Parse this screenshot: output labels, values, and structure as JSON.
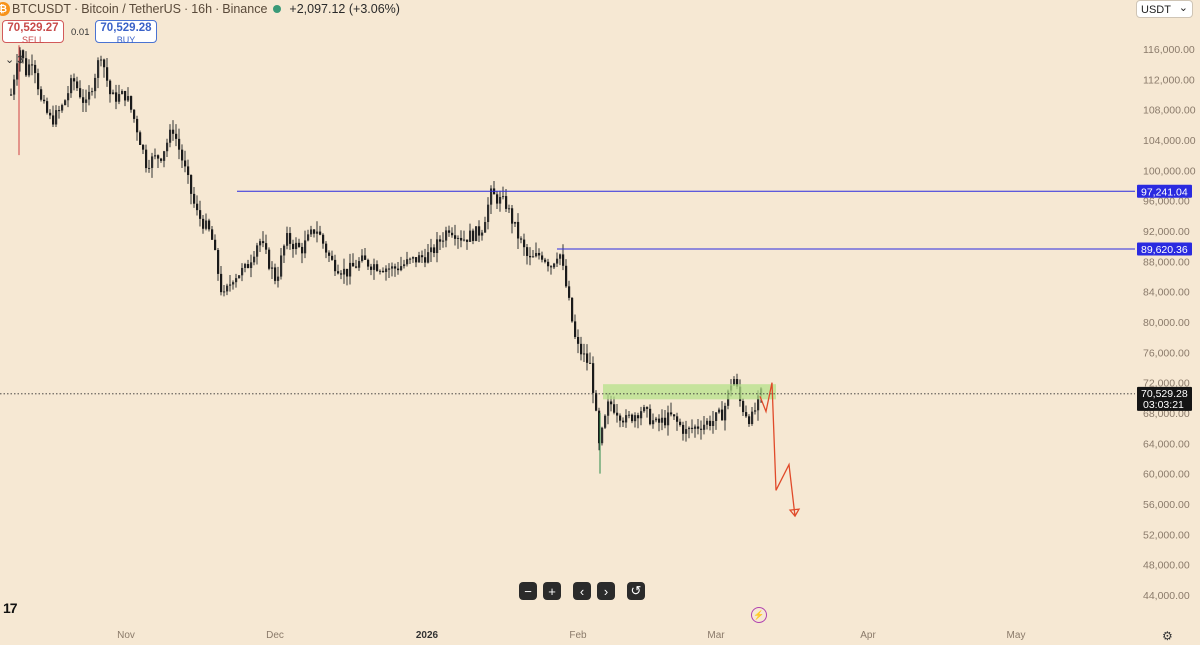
{
  "header": {
    "symbol": "BTCUSDT",
    "name": "Bitcoin / TetherUS",
    "interval": "16h",
    "exchange": "Binance",
    "change": "+2,097.12 (+3.06%)",
    "logo_letter": "₿",
    "separator": "·"
  },
  "trade": {
    "sell_price": "70,529.27",
    "sell_label": "SELL",
    "buy_price": "70,529.28",
    "buy_label": "BUY",
    "spread": "0.01"
  },
  "indicators_label": "3",
  "currency": "USDT",
  "price_scale": {
    "ticks": [
      "116,000.00",
      "112,000.00",
      "108,000.00",
      "104,000.00",
      "100,000.00",
      "96,000.00",
      "92,000.00",
      "88,000.00",
      "84,000.00",
      "80,000.00",
      "76,000.00",
      "72,000.00",
      "68,000.00",
      "64,000.00",
      "60,000.00",
      "56,000.00",
      "52,000.00",
      "48,000.00",
      "44,000.00"
    ],
    "markers": [
      {
        "text": "97,241.04",
        "value": 97241.04,
        "color": "#2a2ae0"
      },
      {
        "text": "89,620.36",
        "value": 89620.36,
        "color": "#2a2ae0"
      }
    ],
    "current_price": "70,529.28",
    "countdown": "03:03:21"
  },
  "time_scale": {
    "labels": [
      {
        "text": "Nov",
        "bold": false
      },
      {
        "text": "Dec",
        "bold": false
      },
      {
        "text": "2026",
        "bold": true
      },
      {
        "text": "Feb",
        "bold": false
      },
      {
        "text": "Mar",
        "bold": false
      },
      {
        "text": "Apr",
        "bold": false
      },
      {
        "text": "May",
        "bold": false
      }
    ]
  },
  "chart_data": {
    "type": "candlestick",
    "ylim": [
      42000,
      118000
    ],
    "key_points": [
      {
        "label": "Nov",
        "value": 110000
      },
      {
        "label": "Dec",
        "value": 90000
      },
      {
        "label": "2026",
        "value": 89000
      },
      {
        "label": "Feb",
        "value": 69000
      },
      {
        "label": "Mar",
        "value": 69000
      }
    ],
    "horizontal_lines": [
      97241.04,
      89620.36
    ],
    "current_price_line": 70529.28,
    "zone": {
      "low": 69800,
      "high": 71800
    },
    "projection": [
      70200,
      68200,
      72000,
      57800,
      61200,
      54400
    ],
    "colors": {
      "up": "#2e2e2e",
      "down": "#1a1a1a",
      "wick": "#333333",
      "level": "#2a2ae0",
      "zone": "#b5e28a",
      "projection": "#e04a2a"
    }
  },
  "nav": {
    "minus": "−",
    "plus": "+",
    "left": "‹",
    "right": "›",
    "reset": "↺"
  },
  "tv_logo": "17",
  "bolt": "⚡",
  "gear": "⚙"
}
